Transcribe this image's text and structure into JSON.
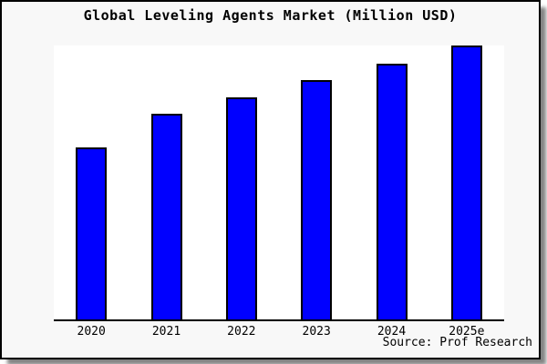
{
  "title": "Global Leveling Agents Market (Million USD)",
  "source_label": "Source: Prof Research",
  "colors": {
    "bar_fill": "#0000ff",
    "bar_border": "#000000",
    "panel_background": "#f8f8f8",
    "plot_background": "#ffffff",
    "axis": "#000000",
    "text": "#000000"
  },
  "chart_data": {
    "type": "bar",
    "title": "Global Leveling Agents Market (Million USD)",
    "categories": [
      "2020",
      "2021",
      "2022",
      "2023",
      "2024",
      "2025e"
    ],
    "values": [
      62.7,
      75.0,
      81.2,
      87.4,
      93.5,
      100.0
    ],
    "xlabel": "",
    "ylabel": "",
    "ylim": [
      0,
      100
    ],
    "grid": false,
    "legend": false,
    "y_axis_labels_visible": false,
    "source": "Source: Prof Research"
  }
}
